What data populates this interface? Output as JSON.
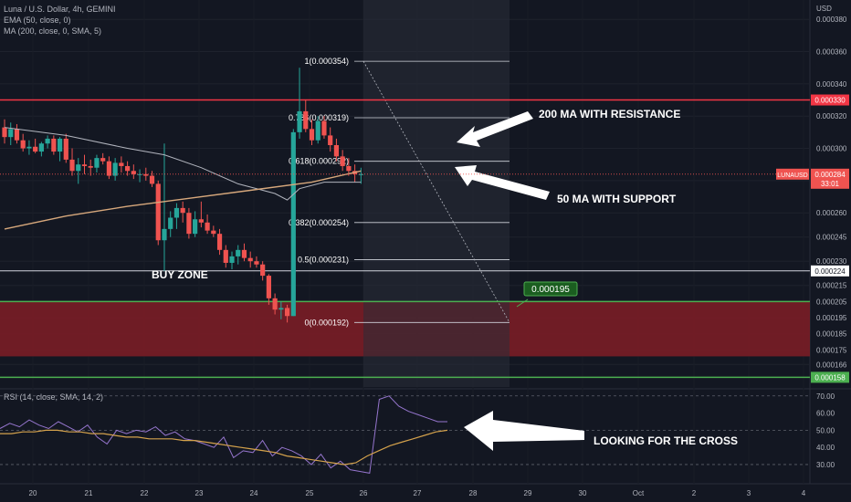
{
  "header": {
    "symbol_line": "Luna / U.S. Dollar, 4h, GEMINI",
    "ema_line": "EMA (50, close, 0)",
    "ma_line": "MA (200, close, 0, SMA, 5)",
    "rsi_line": "RSI (14, close, SMA, 14, 2)"
  },
  "colors": {
    "background": "#131722",
    "up": "#26a69a",
    "down": "#ef5350",
    "ema50": "#b2b5be",
    "ma200": "#d7a87c",
    "resistance": "#f23645",
    "support": "#4caf50",
    "buy_zone": "#7a1d26",
    "fib": "#d1d4dc"
  },
  "annotations": {
    "buy_zone": "BUY ZONE",
    "resistance_note": "200 MA WITH RESISTANCE",
    "support_note": "50 MA WITH SUPPORT",
    "rsi_note": "LOOKING FOR THE CROSS",
    "target_label": "0.000195"
  },
  "price_tags": {
    "resistance": "0.000330",
    "current_symbol": "LUNAUSD",
    "current_price": "0.000284",
    "countdown": "33:01",
    "white_line": "0.000224",
    "support": "0.000158"
  },
  "chart_data": [
    {
      "type": "candlestick",
      "title": "Luna / U.S. Dollar, 4h, GEMINI",
      "y_unit": "USD",
      "y_range": [
        0.000152,
        0.000392
      ],
      "y_ticks": [
        "0.000380",
        "0.000360",
        "0.000340",
        "0.000320",
        "0.000300",
        "0.000280",
        "0.000260",
        "0.000245",
        "0.000230",
        "0.000215",
        "0.000205",
        "0.000195",
        "0.000185",
        "0.000175",
        "0.000166"
      ],
      "x_ticks": [
        "20",
        "21",
        "22",
        "23",
        "24",
        "25",
        "26",
        "27",
        "28",
        "29",
        "30",
        "Oct",
        "2",
        "3",
        "4"
      ],
      "candles": [
        {
          "o": 0.000313,
          "h": 0.000318,
          "l": 0.000303,
          "c": 0.000307
        },
        {
          "o": 0.000307,
          "h": 0.000316,
          "l": 0.000302,
          "c": 0.000312
        },
        {
          "o": 0.000312,
          "h": 0.000315,
          "l": 0.000303,
          "c": 0.000305
        },
        {
          "o": 0.000305,
          "h": 0.000309,
          "l": 0.000298,
          "c": 0.0003
        },
        {
          "o": 0.0003,
          "h": 0.000305,
          "l": 0.000296,
          "c": 0.000301
        },
        {
          "o": 0.000301,
          "h": 0.000306,
          "l": 0.000297,
          "c": 0.000298
        },
        {
          "o": 0.000298,
          "h": 0.000304,
          "l": 0.000295,
          "c": 0.000303
        },
        {
          "o": 0.000303,
          "h": 0.000308,
          "l": 0.0003,
          "c": 0.000306
        },
        {
          "o": 0.000306,
          "h": 0.000308,
          "l": 0.000296,
          "c": 0.000298
        },
        {
          "o": 0.000298,
          "h": 0.000307,
          "l": 0.000292,
          "c": 0.000306
        },
        {
          "o": 0.000306,
          "h": 0.000309,
          "l": 0.000291,
          "c": 0.000293
        },
        {
          "o": 0.000293,
          "h": 0.0003,
          "l": 0.000283,
          "c": 0.000286
        },
        {
          "o": 0.000286,
          "h": 0.000294,
          "l": 0.000278,
          "c": 0.00029
        },
        {
          "o": 0.00029,
          "h": 0.000296,
          "l": 0.000284,
          "c": 0.000289
        },
        {
          "o": 0.000289,
          "h": 0.000293,
          "l": 0.000283,
          "c": 0.000288
        },
        {
          "o": 0.000288,
          "h": 0.000296,
          "l": 0.000285,
          "c": 0.000294
        },
        {
          "o": 0.000294,
          "h": 0.000297,
          "l": 0.00029,
          "c": 0.000292
        },
        {
          "o": 0.000292,
          "h": 0.000295,
          "l": 0.000281,
          "c": 0.000283
        },
        {
          "o": 0.000283,
          "h": 0.000294,
          "l": 0.00028,
          "c": 0.000291
        },
        {
          "o": 0.000291,
          "h": 0.000295,
          "l": 0.000285,
          "c": 0.000289
        },
        {
          "o": 0.000289,
          "h": 0.000292,
          "l": 0.000283,
          "c": 0.000286
        },
        {
          "o": 0.000286,
          "h": 0.00029,
          "l": 0.000281,
          "c": 0.000284
        },
        {
          "o": 0.000284,
          "h": 0.000287,
          "l": 0.000279,
          "c": 0.000284
        },
        {
          "o": 0.000284,
          "h": 0.000288,
          "l": 0.00028,
          "c": 0.000283
        },
        {
          "o": 0.000283,
          "h": 0.000286,
          "l": 0.000276,
          "c": 0.000278
        },
        {
          "o": 0.000278,
          "h": 0.00028,
          "l": 0.00024,
          "c": 0.000243
        },
        {
          "o": 0.000243,
          "h": 0.000303,
          "l": 0.000224,
          "c": 0.00025
        },
        {
          "o": 0.00025,
          "h": 0.000261,
          "l": 0.000245,
          "c": 0.000257
        },
        {
          "o": 0.000257,
          "h": 0.000266,
          "l": 0.00025,
          "c": 0.000263
        },
        {
          "o": 0.000263,
          "h": 0.000267,
          "l": 0.000254,
          "c": 0.00026
        },
        {
          "o": 0.00026,
          "h": 0.000263,
          "l": 0.000244,
          "c": 0.000247
        },
        {
          "o": 0.000247,
          "h": 0.000261,
          "l": 0.000245,
          "c": 0.000256
        },
        {
          "o": 0.000256,
          "h": 0.000267,
          "l": 0.000251,
          "c": 0.000254
        },
        {
          "o": 0.000254,
          "h": 0.000259,
          "l": 0.000247,
          "c": 0.000249
        },
        {
          "o": 0.000249,
          "h": 0.000252,
          "l": 0.000245,
          "c": 0.000247
        },
        {
          "o": 0.000247,
          "h": 0.00025,
          "l": 0.000234,
          "c": 0.000237
        },
        {
          "o": 0.000237,
          "h": 0.00024,
          "l": 0.000226,
          "c": 0.000229
        },
        {
          "o": 0.000229,
          "h": 0.000236,
          "l": 0.000225,
          "c": 0.000233
        },
        {
          "o": 0.000233,
          "h": 0.00024,
          "l": 0.000228,
          "c": 0.000237
        },
        {
          "o": 0.000237,
          "h": 0.000241,
          "l": 0.00023,
          "c": 0.000232
        },
        {
          "o": 0.000232,
          "h": 0.000236,
          "l": 0.000226,
          "c": 0.00023
        },
        {
          "o": 0.00023,
          "h": 0.000233,
          "l": 0.000226,
          "c": 0.000228
        },
        {
          "o": 0.000228,
          "h": 0.00023,
          "l": 0.000218,
          "c": 0.000221
        },
        {
          "o": 0.000221,
          "h": 0.000222,
          "l": 0.000203,
          "c": 0.000207
        },
        {
          "o": 0.000207,
          "h": 0.00021,
          "l": 0.000197,
          "c": 0.0002
        },
        {
          "o": 0.0002,
          "h": 0.000205,
          "l": 0.000194,
          "c": 0.000201
        },
        {
          "o": 0.000201,
          "h": 0.000203,
          "l": 0.000192,
          "c": 0.000196
        },
        {
          "o": 0.000196,
          "h": 0.000312,
          "l": 0.000196,
          "c": 0.00031
        },
        {
          "o": 0.00031,
          "h": 0.00035,
          "l": 0.000306,
          "c": 0.000323
        },
        {
          "o": 0.000323,
          "h": 0.00033,
          "l": 0.00031,
          "c": 0.000312
        },
        {
          "o": 0.000312,
          "h": 0.000318,
          "l": 0.000302,
          "c": 0.000305
        },
        {
          "o": 0.000305,
          "h": 0.00032,
          "l": 0.000303,
          "c": 0.000317
        },
        {
          "o": 0.000317,
          "h": 0.00032,
          "l": 0.000306,
          "c": 0.000308
        },
        {
          "o": 0.000308,
          "h": 0.000313,
          "l": 0.000298,
          "c": 0.000302
        },
        {
          "o": 0.000302,
          "h": 0.000306,
          "l": 0.000292,
          "c": 0.000295
        },
        {
          "o": 0.000295,
          "h": 0.000299,
          "l": 0.000286,
          "c": 0.000289
        },
        {
          "o": 0.000289,
          "h": 0.000294,
          "l": 0.000283,
          "c": 0.000286
        },
        {
          "o": 0.000286,
          "h": 0.00029,
          "l": 0.000279,
          "c": 0.000284
        },
        {
          "o": 0.000284,
          "h": 0.000288,
          "l": 0.000278,
          "c": 0.000284
        }
      ],
      "ema50": [
        [
          0,
          0.000313
        ],
        [
          10,
          0.000308
        ],
        [
          20,
          0.0003
        ],
        [
          26,
          0.000296
        ],
        [
          32,
          0.000288
        ],
        [
          38,
          0.000278
        ],
        [
          44,
          0.000272
        ],
        [
          46,
          0.000268
        ],
        [
          48,
          0.000275
        ],
        [
          52,
          0.000279
        ],
        [
          56,
          0.000279
        ],
        [
          58,
          0.000279
        ]
      ],
      "ma200": [
        [
          0,
          0.00025
        ],
        [
          10,
          0.000258
        ],
        [
          20,
          0.000264
        ],
        [
          30,
          0.000269
        ],
        [
          40,
          0.000274
        ],
        [
          50,
          0.000279
        ],
        [
          58,
          0.000286
        ]
      ],
      "horizontal_lines": [
        {
          "name": "resistance",
          "price": 0.00033
        },
        {
          "name": "white_level",
          "price": 0.000224
        },
        {
          "name": "support_top",
          "price": 0.000205
        },
        {
          "name": "support_bottom",
          "price": 0.000158
        }
      ],
      "buy_zone": {
        "from": 0.000171,
        "to": 0.000205
      },
      "fibonacci": [
        {
          "label": "1(0.000354)",
          "price": 0.000354
        },
        {
          "label": "0.786(0.000319)",
          "price": 0.000319
        },
        {
          "label": "0.618(0.000292)",
          "price": 0.000292
        },
        {
          "label": "0.382(0.000254)",
          "price": 0.000254
        },
        {
          "label": "0.5(0.000231)",
          "price": 0.000231
        },
        {
          "label": "0(0.000192)",
          "price": 0.000192
        }
      ]
    },
    {
      "type": "line",
      "title": "RSI (14, close, SMA, 14, 2)",
      "y_range": [
        22,
        72
      ],
      "y_ticks": [
        "70.00",
        "60.00",
        "50.00",
        "40.00",
        "30.00"
      ],
      "series": [
        {
          "values": [
            51,
            54,
            52,
            56,
            53,
            51,
            55,
            52,
            49,
            53,
            46,
            42,
            50,
            48,
            50,
            49,
            52,
            47,
            49,
            45,
            44,
            42,
            40,
            46,
            34,
            38,
            37,
            44,
            35,
            40,
            38,
            35,
            30,
            36,
            28,
            32,
            27,
            26,
            25,
            68,
            70,
            64,
            61,
            59,
            57,
            55,
            55
          ]
        },
        {
          "values": [
            48,
            48,
            49,
            49,
            50,
            50,
            49,
            49,
            48,
            48,
            47,
            46,
            46,
            45,
            45,
            45,
            44,
            44,
            43,
            42,
            41,
            40,
            39,
            38,
            37,
            35,
            34,
            33,
            32,
            31,
            30,
            31,
            35,
            38,
            41,
            43,
            45,
            47,
            49,
            50
          ]
        }
      ]
    }
  ]
}
